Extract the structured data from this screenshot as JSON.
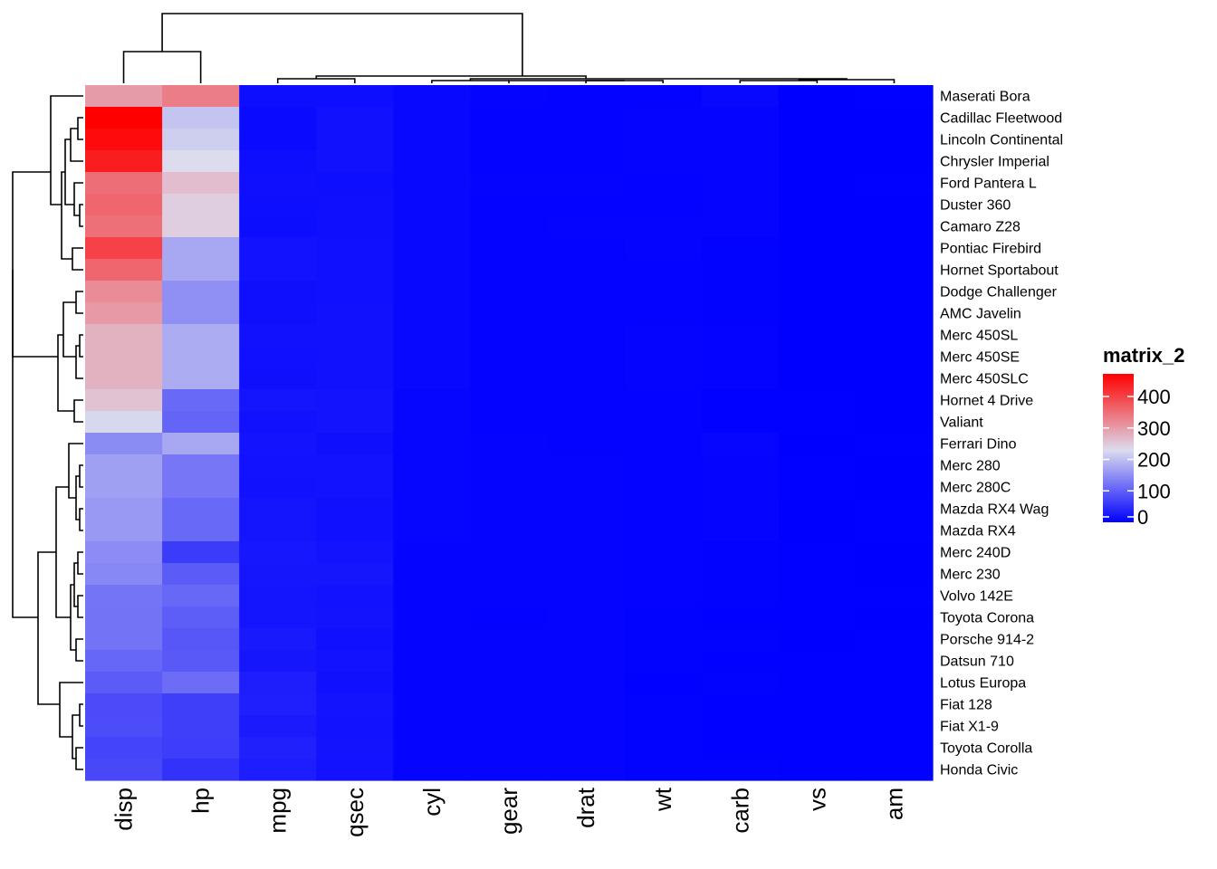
{
  "chart_data": {
    "type": "heatmap",
    "title": "",
    "columns": [
      "disp",
      "hp",
      "mpg",
      "qsec",
      "cyl",
      "gear",
      "drat",
      "wt",
      "carb",
      "vs",
      "am"
    ],
    "rows": [
      "Maserati Bora",
      "Cadillac Fleetwood",
      "Lincoln Continental",
      "Chrysler Imperial",
      "Ford Pantera L",
      "Duster 360",
      "Camaro Z28",
      "Pontiac Firebird",
      "Hornet Sportabout",
      "Dodge Challenger",
      "AMC Javelin",
      "Merc 450SL",
      "Merc 450SE",
      "Merc 450SLC",
      "Hornet 4 Drive",
      "Valiant",
      "Ferrari Dino",
      "Merc 280",
      "Merc 280C",
      "Mazda RX4 Wag",
      "Mazda RX4",
      "Merc 240D",
      "Merc 230",
      "Volvo 142E",
      "Toyota Corona",
      "Porsche 914-2",
      "Datsun 710",
      "Lotus Europa",
      "Fiat 128",
      "Fiat X1-9",
      "Toyota Corolla",
      "Honda Civic"
    ],
    "values": [
      [
        301,
        335,
        15,
        14.6,
        8,
        5,
        3.54,
        3.57,
        8,
        0,
        1
      ],
      [
        472,
        205,
        10.4,
        17.98,
        8,
        3,
        2.93,
        5.25,
        4,
        0,
        0
      ],
      [
        460,
        215,
        10.4,
        17.82,
        8,
        3,
        3,
        5.424,
        4,
        0,
        0
      ],
      [
        440,
        230,
        14.7,
        17.42,
        8,
        3,
        3.23,
        5.345,
        4,
        0,
        0
      ],
      [
        351,
        264,
        15.8,
        14.5,
        8,
        5,
        4.22,
        3.17,
        4,
        0,
        1
      ],
      [
        360,
        245,
        14.3,
        15.84,
        8,
        3,
        3.21,
        3.57,
        4,
        0,
        0
      ],
      [
        350,
        245,
        13.3,
        15.41,
        8,
        3,
        3.73,
        3.84,
        4,
        0,
        0
      ],
      [
        400,
        175,
        19.2,
        17.05,
        8,
        3,
        3.08,
        3.845,
        2,
        0,
        0
      ],
      [
        360,
        175,
        18.7,
        17.02,
        8,
        3,
        3.15,
        3.44,
        2,
        0,
        0
      ],
      [
        318,
        150,
        15.5,
        16.87,
        8,
        3,
        2.76,
        3.52,
        2,
        0,
        0
      ],
      [
        304,
        150,
        15.2,
        17.3,
        8,
        3,
        3.15,
        3.435,
        2,
        0,
        0
      ],
      [
        275.8,
        180,
        17.3,
        17.6,
        8,
        3,
        3.07,
        3.73,
        3,
        0,
        0
      ],
      [
        275.8,
        180,
        16.4,
        17.4,
        8,
        3,
        3.07,
        4.07,
        3,
        0,
        0
      ],
      [
        275.8,
        180,
        15.2,
        18,
        8,
        3,
        3.07,
        3.78,
        3,
        0,
        0
      ],
      [
        258,
        110,
        21.4,
        19.44,
        6,
        3,
        3.08,
        3.215,
        1,
        1,
        0
      ],
      [
        225,
        105,
        18.1,
        20.22,
        6,
        3,
        2.76,
        3.46,
        1,
        1,
        0
      ],
      [
        145,
        175,
        19.7,
        15.5,
        6,
        5,
        3.62,
        2.77,
        6,
        0,
        1
      ],
      [
        167.6,
        123,
        19.2,
        18.3,
        6,
        4,
        3.92,
        3.44,
        4,
        1,
        0
      ],
      [
        167.6,
        123,
        17.8,
        18.9,
        6,
        4,
        3.92,
        3.44,
        4,
        1,
        0
      ],
      [
        160,
        110,
        21,
        17.02,
        6,
        4,
        3.9,
        2.875,
        4,
        0,
        1
      ],
      [
        160,
        110,
        21,
        16.46,
        6,
        4,
        3.9,
        2.62,
        4,
        0,
        1
      ],
      [
        146.7,
        62,
        24.4,
        20,
        4,
        4,
        3.69,
        3.19,
        2,
        1,
        0
      ],
      [
        140.8,
        95,
        22.8,
        22.9,
        4,
        4,
        3.92,
        3.15,
        2,
        1,
        0
      ],
      [
        121,
        109,
        21.4,
        18.6,
        4,
        4,
        4.11,
        2.78,
        2,
        1,
        1
      ],
      [
        120.1,
        97,
        21.5,
        20.01,
        4,
        3,
        3.7,
        2.465,
        1,
        1,
        0
      ],
      [
        120.3,
        91,
        26,
        16.7,
        4,
        5,
        4.43,
        2.14,
        2,
        0,
        1
      ],
      [
        108,
        93,
        22.8,
        18.61,
        4,
        4,
        3.85,
        2.32,
        1,
        1,
        1
      ],
      [
        95.1,
        113,
        30.4,
        16.9,
        4,
        5,
        3.77,
        1.513,
        2,
        1,
        1
      ],
      [
        78.7,
        66,
        32.4,
        19.47,
        4,
        4,
        4.08,
        2.2,
        1,
        1,
        1
      ],
      [
        79,
        66,
        27.3,
        18.9,
        4,
        4,
        4.08,
        1.935,
        1,
        1,
        1
      ],
      [
        71.1,
        65,
        33.9,
        19.9,
        4,
        4,
        4.22,
        1.835,
        1,
        1,
        1
      ],
      [
        75.7,
        52,
        30.4,
        18.52,
        4,
        4,
        4.93,
        1.615,
        2,
        1,
        1
      ]
    ],
    "color_scale": {
      "low": "#0000ff",
      "mid": "#dcdcee",
      "high": "#ff0000",
      "domain": [
        0,
        230,
        472
      ]
    },
    "legend": {
      "title": "matrix_2",
      "ticks": [
        400,
        300,
        200,
        100,
        0
      ],
      "range": [
        0,
        472
      ],
      "placement": "right"
    },
    "dendrogram": {
      "rows": "left",
      "columns": "top"
    }
  }
}
